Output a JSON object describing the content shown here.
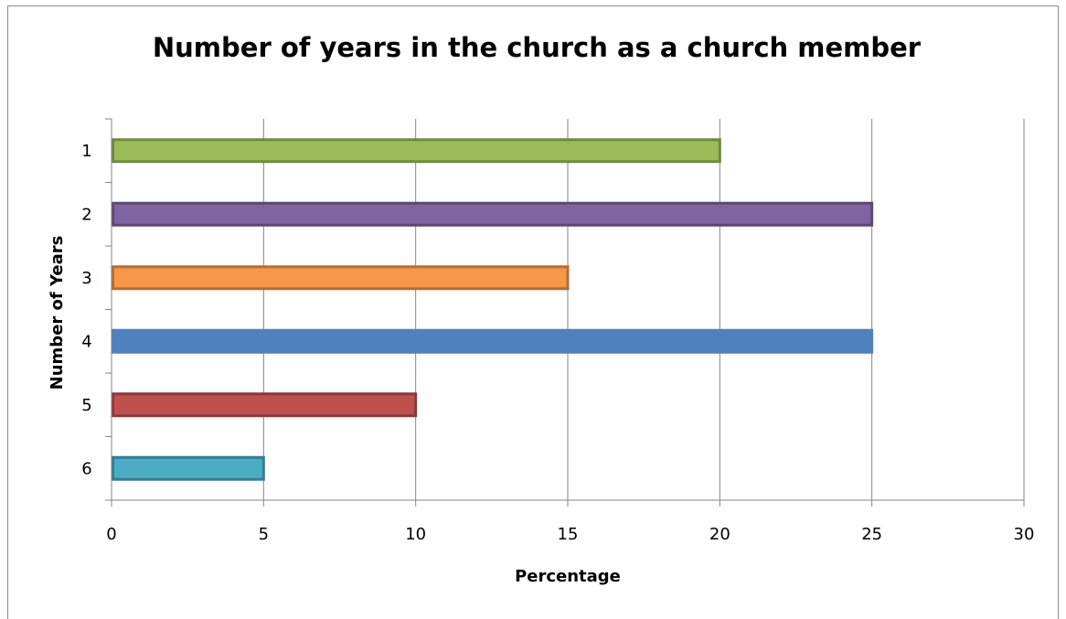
{
  "chart_data": {
    "type": "bar",
    "orientation": "horizontal",
    "title": "Number of years in the church as a church member",
    "xlabel": "Percentage",
    "ylabel": "Number of Years",
    "categories": [
      "1",
      "2",
      "3",
      "4",
      "5",
      "6"
    ],
    "values": [
      20,
      25,
      15,
      25,
      10,
      5
    ],
    "colors": [
      "#9bbb59",
      "#8064a2",
      "#f79646",
      "#4f81bd",
      "#c0504d",
      "#4bacc6"
    ],
    "border_colors": [
      "#71893f",
      "#5c4776",
      "#b66d31",
      "#4f81bd",
      "#8c3836",
      "#357d91"
    ],
    "xlim": [
      0,
      30
    ],
    "xticks": [
      0,
      5,
      10,
      15,
      20,
      25,
      30
    ],
    "grid": "vertical",
    "legend": "none"
  }
}
